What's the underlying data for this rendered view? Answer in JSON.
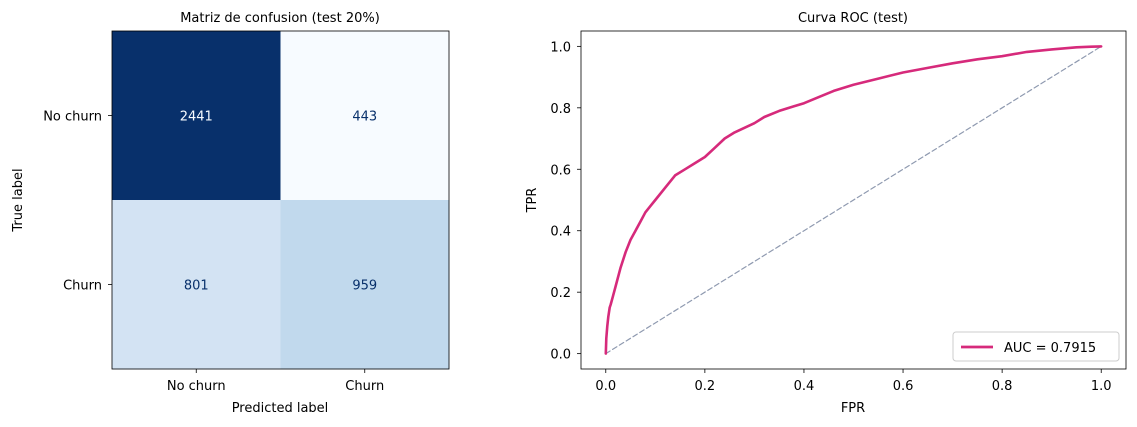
{
  "chart_data": [
    {
      "type": "heatmap",
      "title": "Matriz de confusion (test 20%)",
      "xlabel": "Predicted label",
      "ylabel": "True label",
      "x_categories": [
        "No churn",
        "Churn"
      ],
      "y_categories": [
        "No churn",
        "Churn"
      ],
      "values": [
        [
          2441,
          443
        ],
        [
          801,
          959
        ]
      ],
      "colormap": "Blues",
      "cell_colors": [
        [
          "#08306b",
          "#f7fbff"
        ],
        [
          "#d3e3f3",
          "#c1d9ed"
        ]
      ],
      "text_colors": [
        [
          "#f7fbff",
          "#08306b"
        ],
        [
          "#08306b",
          "#08306b"
        ]
      ]
    },
    {
      "type": "line",
      "title": "Curva ROC (test)",
      "xlabel": "FPR",
      "ylabel": "TPR",
      "xlim": [
        -0.05,
        1.05
      ],
      "ylim": [
        -0.05,
        1.05
      ],
      "xticks": [
        "0.0",
        "0.2",
        "0.4",
        "0.6",
        "0.8",
        "1.0"
      ],
      "yticks": [
        "0.0",
        "0.2",
        "0.4",
        "0.6",
        "0.8",
        "1.0"
      ],
      "legend_position": "lower-right",
      "series": [
        {
          "name": "AUC = 0.7915",
          "color": "#d62a7b",
          "x": [
            0,
            0.001,
            0.003,
            0.005,
            0.008,
            0.01,
            0.015,
            0.02,
            0.03,
            0.04,
            0.05,
            0.06,
            0.07,
            0.08,
            0.09,
            0.1,
            0.12,
            0.14,
            0.16,
            0.18,
            0.2,
            0.22,
            0.24,
            0.26,
            0.28,
            0.3,
            0.32,
            0.35,
            0.38,
            0.4,
            0.43,
            0.46,
            0.5,
            0.55,
            0.6,
            0.65,
            0.7,
            0.75,
            0.8,
            0.85,
            0.9,
            0.95,
            0.98,
            1.0
          ],
          "y": [
            0,
            0.05,
            0.09,
            0.12,
            0.15,
            0.16,
            0.19,
            0.22,
            0.28,
            0.33,
            0.37,
            0.4,
            0.43,
            0.46,
            0.48,
            0.5,
            0.54,
            0.58,
            0.6,
            0.62,
            0.64,
            0.67,
            0.7,
            0.72,
            0.735,
            0.75,
            0.77,
            0.79,
            0.805,
            0.815,
            0.835,
            0.855,
            0.875,
            0.895,
            0.915,
            0.93,
            0.945,
            0.958,
            0.968,
            0.982,
            0.99,
            0.997,
            0.999,
            1.0
          ]
        },
        {
          "name": "",
          "color": "#8f9ab0",
          "dashed": true,
          "x": [
            0,
            1
          ],
          "y": [
            0,
            1
          ]
        }
      ]
    }
  ]
}
